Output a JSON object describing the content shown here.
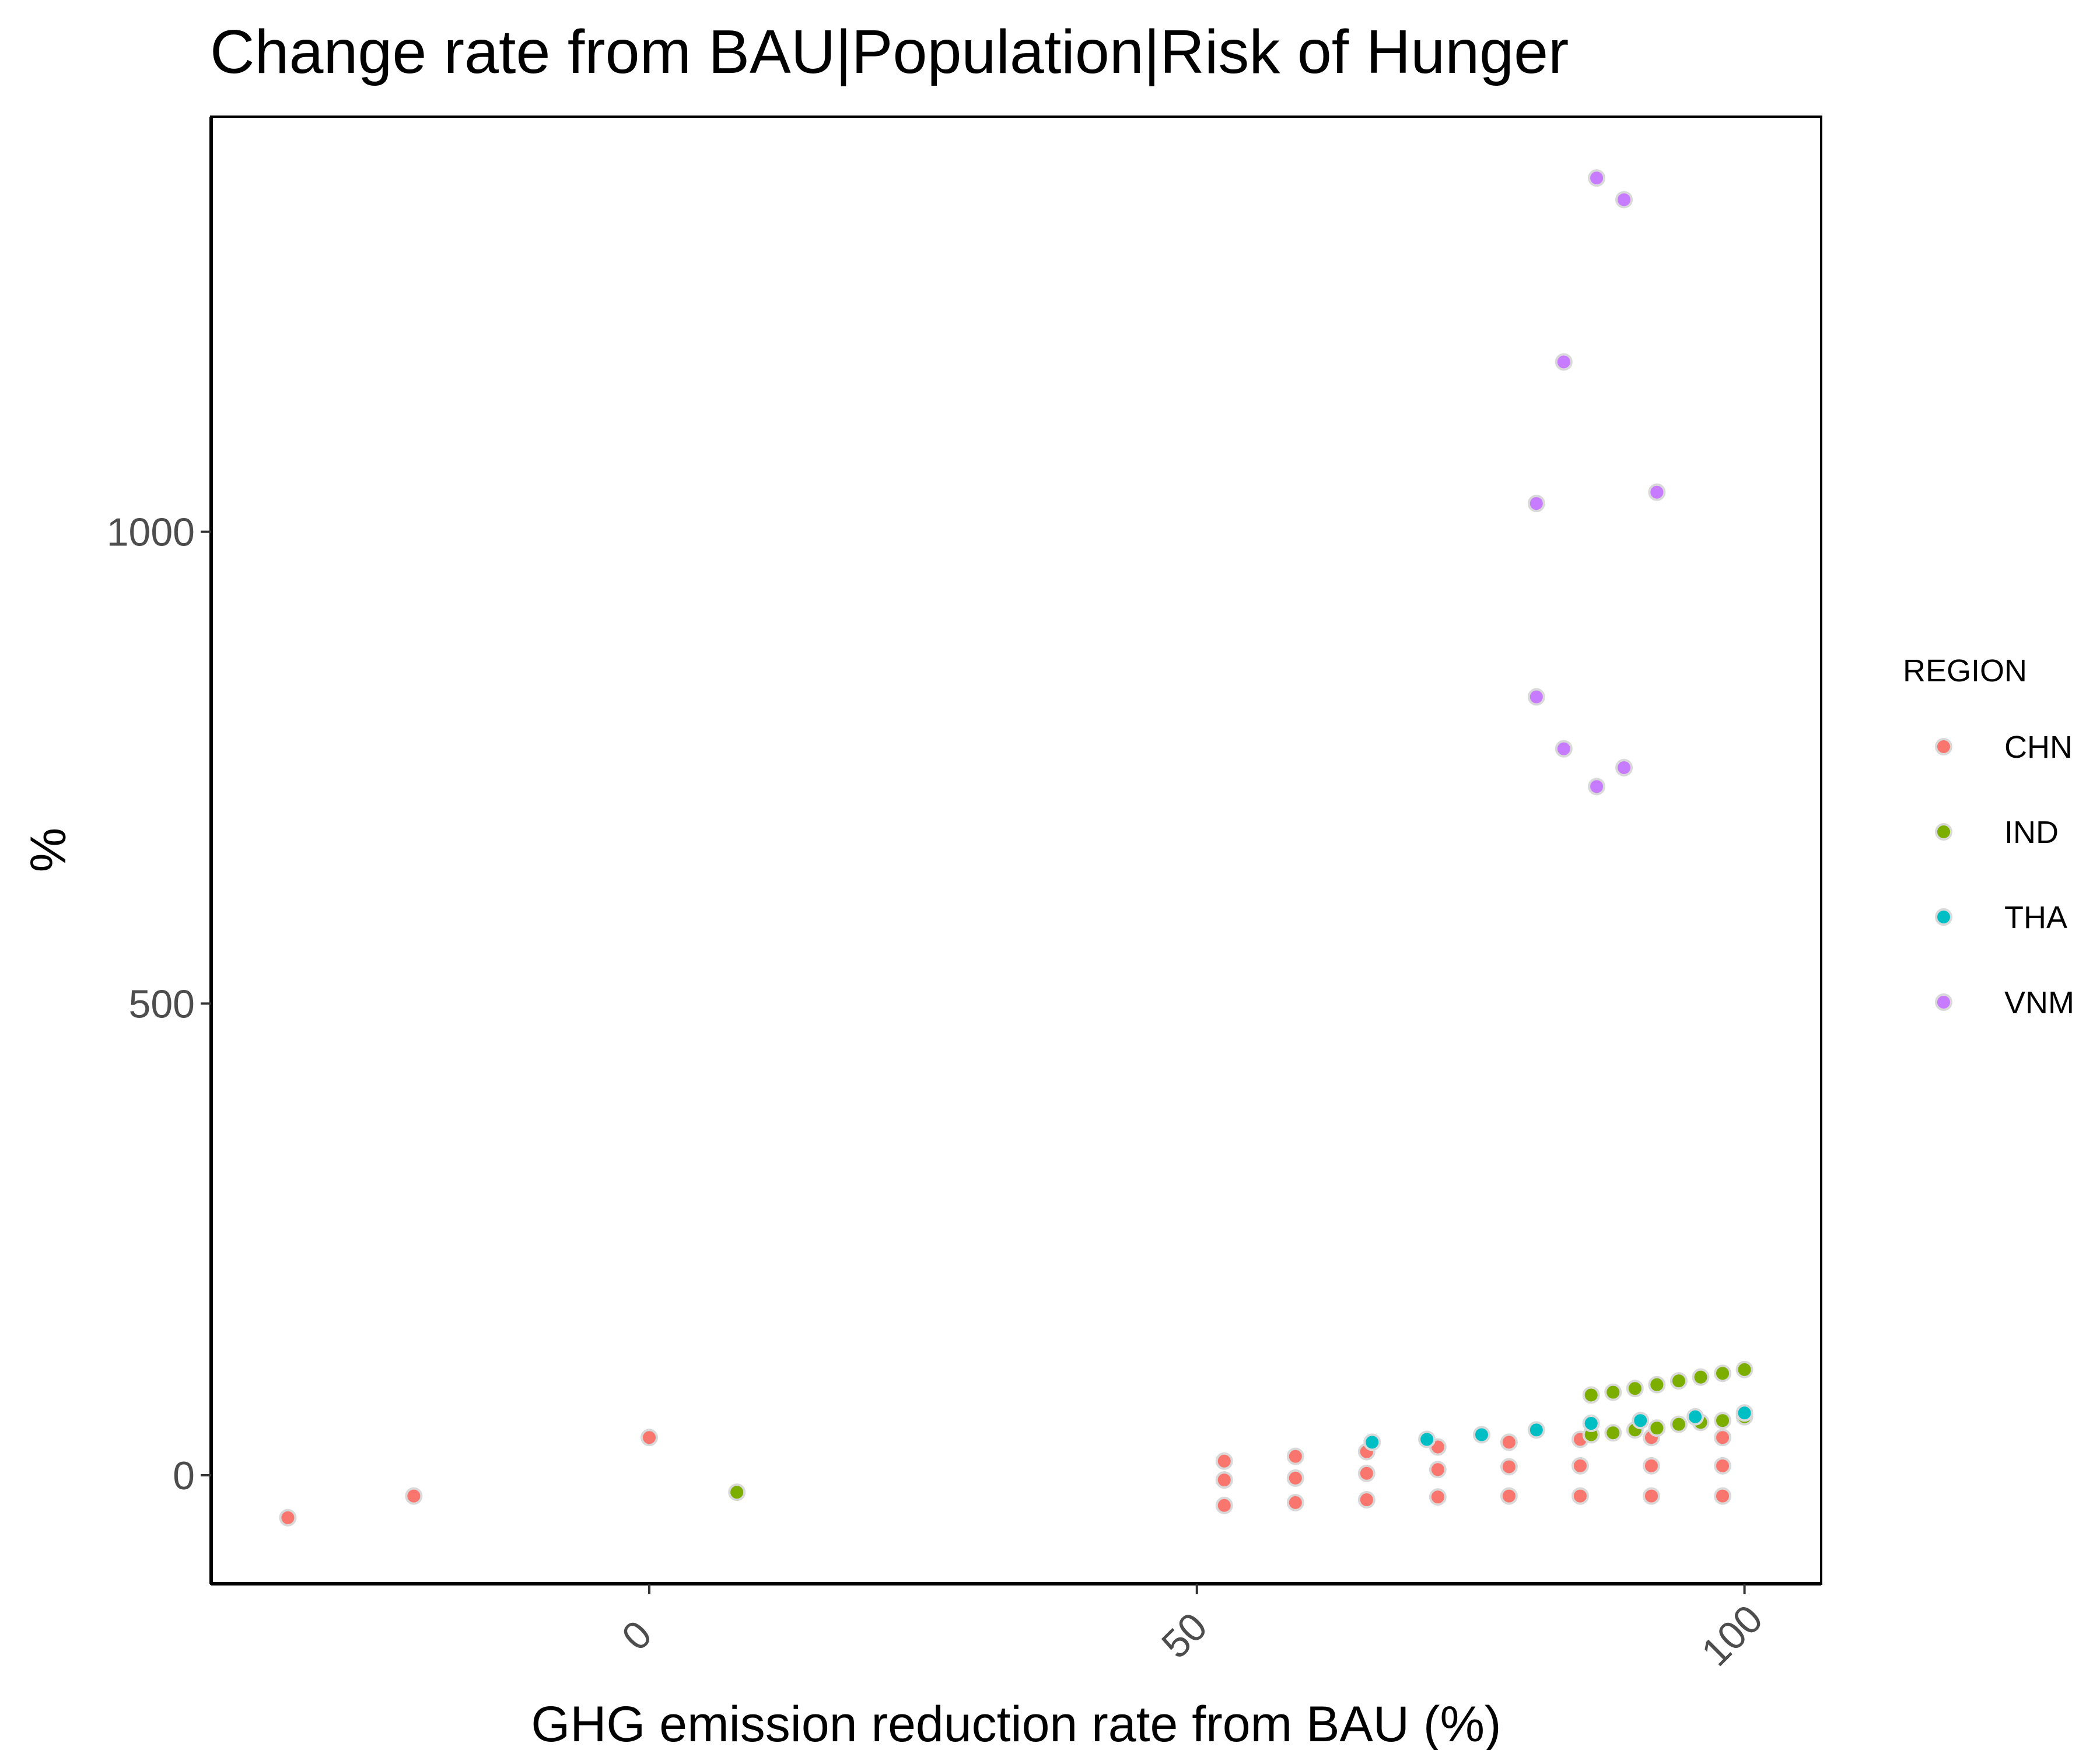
{
  "chart_data": {
    "type": "scatter",
    "title": "Change rate from BAU|Population|Risk of Hunger",
    "xlabel": "GHG emission reduction rate from BAU (%)",
    "ylabel": "%",
    "xlim": [
      -40,
      107
    ],
    "ylim": [
      -115,
      1440
    ],
    "x_ticks": [
      0,
      50,
      100
    ],
    "y_ticks": [
      0,
      500,
      1000
    ],
    "grid": false,
    "legend": {
      "title": "REGION",
      "position": "right"
    },
    "series": [
      {
        "name": "CHN",
        "color": "#F8766D",
        "points": [
          [
            -33,
            -45
          ],
          [
            -21.5,
            -22
          ],
          [
            0,
            40
          ],
          [
            52.5,
            15
          ],
          [
            52.5,
            -5
          ],
          [
            52.5,
            -32
          ],
          [
            59,
            20
          ],
          [
            59,
            -3
          ],
          [
            59,
            -29
          ],
          [
            65.5,
            25
          ],
          [
            65.5,
            2
          ],
          [
            65.5,
            -26
          ],
          [
            72,
            30
          ],
          [
            72,
            6
          ],
          [
            72,
            -23
          ],
          [
            78.5,
            35
          ],
          [
            78.5,
            9
          ],
          [
            78.5,
            -22
          ],
          [
            85,
            38
          ],
          [
            85,
            10
          ],
          [
            85,
            -22
          ],
          [
            91.5,
            40
          ],
          [
            91.5,
            10
          ],
          [
            91.5,
            -22
          ],
          [
            98,
            40
          ],
          [
            98,
            10
          ],
          [
            98,
            -22
          ]
        ]
      },
      {
        "name": "IND",
        "color": "#7CAE00",
        "points": [
          [
            8,
            -18
          ],
          [
            86,
            85
          ],
          [
            88,
            88
          ],
          [
            90,
            92
          ],
          [
            92,
            96
          ],
          [
            94,
            100
          ],
          [
            96,
            104
          ],
          [
            98,
            108
          ],
          [
            100,
            112
          ],
          [
            86,
            43
          ],
          [
            88,
            45
          ],
          [
            90,
            48
          ],
          [
            92,
            50
          ],
          [
            94,
            54
          ],
          [
            96,
            56
          ],
          [
            98,
            58
          ],
          [
            100,
            62
          ]
        ]
      },
      {
        "name": "THA",
        "color": "#00BFC4",
        "points": [
          [
            66,
            35
          ],
          [
            71,
            38
          ],
          [
            76,
            43
          ],
          [
            81,
            48
          ],
          [
            86,
            55
          ],
          [
            90.5,
            58
          ],
          [
            95.5,
            62
          ],
          [
            100,
            66
          ]
        ]
      },
      {
        "name": "VNM",
        "color": "#C77CFF",
        "points": [
          [
            86.5,
            1375
          ],
          [
            89,
            1352
          ],
          [
            83.5,
            1180
          ],
          [
            81,
            1030
          ],
          [
            92,
            1042
          ],
          [
            81,
            825
          ],
          [
            83.5,
            770
          ],
          [
            86.5,
            730
          ],
          [
            89,
            750
          ]
        ]
      }
    ]
  }
}
